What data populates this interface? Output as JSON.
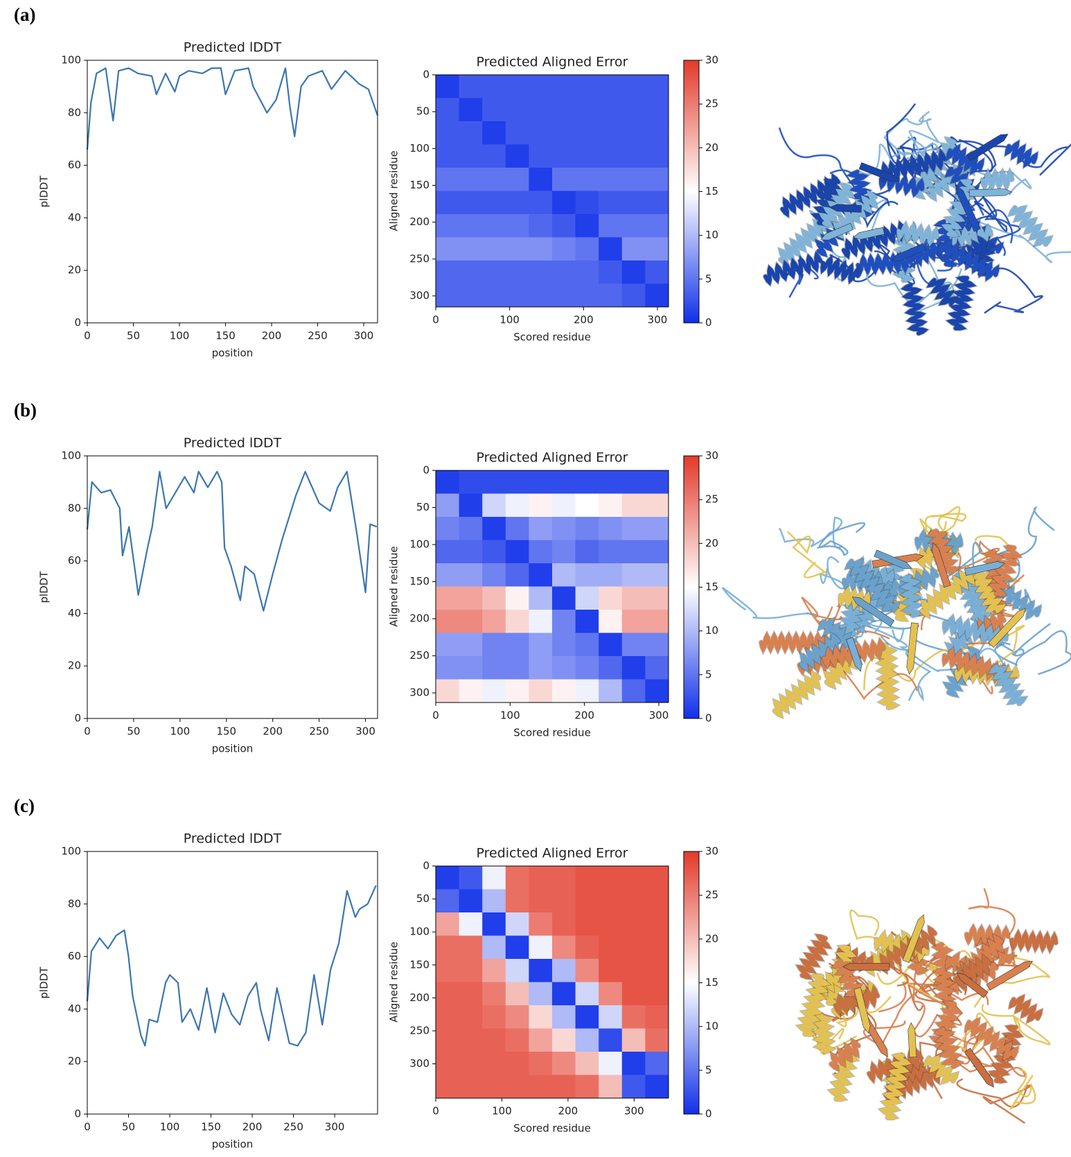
{
  "panel_labels": [
    "(a)",
    "(b)",
    "(c)"
  ],
  "chart_data": [
    {
      "type": "line",
      "title": "Predicted lDDT",
      "xlabel": "position",
      "ylabel": "plDDT",
      "color": "#3a76af",
      "x": [
        0,
        4,
        10,
        20,
        28,
        34,
        45,
        55,
        70,
        75,
        85,
        95,
        100,
        110,
        125,
        135,
        145,
        150,
        160,
        175,
        180,
        195,
        205,
        215,
        220,
        225,
        232,
        240,
        255,
        265,
        280,
        295,
        305,
        315
      ],
      "values": [
        66,
        84,
        95,
        97,
        77,
        96,
        97,
        95,
        94,
        87,
        95,
        88,
        94,
        96,
        95,
        97,
        97,
        87,
        96,
        97,
        90,
        80,
        85,
        97,
        82,
        71,
        90,
        94,
        96,
        89,
        96,
        91,
        89,
        79
      ],
      "xlim": [
        0,
        315
      ],
      "ylim": [
        0,
        100
      ],
      "xticks": [
        0,
        50,
        100,
        150,
        200,
        250,
        300
      ],
      "yticks": [
        0,
        20,
        40,
        60,
        80,
        100
      ]
    },
    {
      "type": "heatmap",
      "title": "Predicted Aligned Error",
      "xlabel": "Scored residue",
      "ylabel": "Aligned residue",
      "colormap": [
        "#1030e8",
        "#ffffff",
        "#e23a2a"
      ],
      "xlim": [
        0,
        315
      ],
      "ylim": [
        315,
        0
      ],
      "xticks": [
        0,
        100,
        200,
        300
      ],
      "yticks": [
        0,
        50,
        100,
        150,
        200,
        250,
        300
      ],
      "colorbar": {
        "lim": [
          0,
          30
        ],
        "ticks": [
          0,
          5,
          10,
          15,
          20,
          25,
          30
        ]
      },
      "matrix": [
        [
          1,
          3,
          3,
          3,
          3,
          3,
          3,
          3,
          3,
          3
        ],
        [
          3,
          1,
          3,
          3,
          3,
          3,
          3,
          3,
          3,
          3
        ],
        [
          3,
          3,
          1,
          3,
          3,
          3,
          3,
          3,
          3,
          3
        ],
        [
          3,
          3,
          3,
          1,
          3,
          3,
          3,
          3,
          3,
          3
        ],
        [
          5,
          5,
          5,
          5,
          1,
          5,
          5,
          5,
          5,
          5
        ],
        [
          3,
          3,
          3,
          3,
          3,
          1,
          2,
          3,
          3,
          3
        ],
        [
          5,
          5,
          5,
          5,
          4,
          3,
          1,
          5,
          5,
          5
        ],
        [
          7,
          7,
          7,
          7,
          7,
          6,
          5,
          1,
          7,
          7
        ],
        [
          4,
          4,
          4,
          4,
          4,
          4,
          4,
          3,
          1,
          3
        ],
        [
          4,
          4,
          4,
          4,
          4,
          4,
          4,
          4,
          3,
          1
        ]
      ]
    },
    {
      "type": "line",
      "title": "Predicted lDDT",
      "xlabel": "position",
      "ylabel": "plDDT",
      "color": "#3a76af",
      "x": [
        0,
        5,
        15,
        25,
        35,
        38,
        45,
        52,
        55,
        65,
        70,
        78,
        85,
        95,
        105,
        115,
        120,
        130,
        140,
        145,
        148,
        155,
        165,
        170,
        180,
        190,
        200,
        210,
        225,
        235,
        250,
        262,
        270,
        280,
        290,
        295,
        300,
        305,
        312
      ],
      "values": [
        72,
        90,
        86,
        87,
        80,
        62,
        73,
        55,
        47,
        65,
        73,
        94,
        80,
        86,
        92,
        86,
        94,
        88,
        94,
        90,
        65,
        58,
        45,
        58,
        55,
        41,
        55,
        68,
        85,
        94,
        82,
        79,
        88,
        94,
        72,
        60,
        48,
        74,
        73
      ],
      "xlim": [
        0,
        313
      ],
      "ylim": [
        0,
        100
      ],
      "xticks": [
        0,
        50,
        100,
        150,
        200,
        250,
        300
      ],
      "yticks": [
        0,
        20,
        40,
        60,
        80,
        100
      ]
    },
    {
      "type": "heatmap",
      "title": "Predicted Aligned Error",
      "xlabel": "Scored residue",
      "ylabel": "Aligned residue",
      "colormap": [
        "#1030e8",
        "#ffffff",
        "#e23a2a"
      ],
      "xlim": [
        0,
        313
      ],
      "ylim": [
        313,
        0
      ],
      "xticks": [
        0,
        100,
        200,
        300
      ],
      "yticks": [
        0,
        50,
        100,
        150,
        200,
        250,
        300
      ],
      "colorbar": {
        "lim": [
          0,
          30
        ],
        "ticks": [
          0,
          5,
          10,
          15,
          20,
          25,
          30
        ]
      },
      "matrix": [
        [
          1,
          2,
          2,
          2,
          2,
          2,
          2,
          2,
          2,
          2
        ],
        [
          8,
          1,
          12,
          14,
          16,
          14,
          15,
          16,
          18,
          18
        ],
        [
          6,
          5,
          1,
          5,
          8,
          7,
          6,
          7,
          8,
          8
        ],
        [
          4,
          4,
          3,
          1,
          5,
          6,
          4,
          5,
          5,
          5
        ],
        [
          8,
          8,
          6,
          4,
          1,
          10,
          9,
          9,
          10,
          10
        ],
        [
          22,
          22,
          20,
          16,
          10,
          1,
          12,
          18,
          20,
          20
        ],
        [
          24,
          24,
          22,
          18,
          14,
          6,
          1,
          16,
          22,
          22
        ],
        [
          8,
          8,
          6,
          6,
          8,
          6,
          5,
          1,
          6,
          6
        ],
        [
          7,
          7,
          6,
          6,
          8,
          7,
          6,
          4,
          1,
          4
        ],
        [
          18,
          16,
          14,
          16,
          18,
          16,
          14,
          10,
          4,
          1
        ]
      ]
    },
    {
      "type": "line",
      "title": "Predicted lDDT",
      "xlabel": "position",
      "ylabel": "plDDT",
      "color": "#3a76af",
      "x": [
        0,
        5,
        15,
        25,
        35,
        45,
        50,
        55,
        65,
        70,
        75,
        85,
        95,
        100,
        110,
        115,
        125,
        135,
        145,
        155,
        165,
        175,
        185,
        195,
        205,
        210,
        220,
        230,
        245,
        255,
        265,
        275,
        285,
        295,
        305,
        315,
        325,
        330,
        340,
        350
      ],
      "values": [
        43,
        62,
        67,
        63,
        68,
        70,
        60,
        45,
        30,
        26,
        36,
        35,
        50,
        53,
        50,
        35,
        40,
        32,
        48,
        31,
        46,
        38,
        34,
        45,
        50,
        40,
        28,
        48,
        27,
        26,
        31,
        53,
        34,
        55,
        65,
        85,
        75,
        78,
        80,
        87
      ],
      "xlim": [
        0,
        352
      ],
      "ylim": [
        0,
        100
      ],
      "xticks": [
        0,
        50,
        100,
        150,
        200,
        250,
        300
      ],
      "yticks": [
        0,
        20,
        40,
        60,
        80,
        100
      ]
    },
    {
      "type": "heatmap",
      "title": "Predicted Aligned Error",
      "xlabel": "Scored residue",
      "ylabel": "Aligned residue",
      "colormap": [
        "#1030e8",
        "#ffffff",
        "#e23a2a"
      ],
      "xlim": [
        0,
        352
      ],
      "ylim": [
        352,
        0
      ],
      "xticks": [
        0,
        100,
        200,
        300
      ],
      "yticks": [
        0,
        50,
        100,
        150,
        200,
        250,
        300
      ],
      "colorbar": {
        "lim": [
          0,
          30
        ],
        "ticks": [
          0,
          5,
          10,
          15,
          20,
          25,
          30
        ]
      },
      "matrix": [
        [
          1,
          3,
          14,
          26,
          27,
          27,
          28,
          28,
          28,
          28
        ],
        [
          4,
          1,
          10,
          26,
          27,
          27,
          28,
          28,
          28,
          28
        ],
        [
          22,
          14,
          1,
          12,
          25,
          27,
          28,
          28,
          28,
          28
        ],
        [
          26,
          26,
          10,
          1,
          14,
          24,
          27,
          28,
          28,
          28
        ],
        [
          26,
          26,
          22,
          12,
          1,
          10,
          24,
          28,
          28,
          28
        ],
        [
          27,
          27,
          25,
          20,
          10,
          1,
          12,
          24,
          28,
          28
        ],
        [
          27,
          27,
          26,
          24,
          18,
          10,
          1,
          12,
          26,
          27
        ],
        [
          27,
          27,
          27,
          26,
          22,
          18,
          10,
          2,
          20,
          26
        ],
        [
          27,
          27,
          27,
          27,
          26,
          24,
          20,
          14,
          1,
          4
        ],
        [
          27,
          27,
          27,
          27,
          27,
          27,
          26,
          20,
          3,
          1
        ]
      ]
    }
  ]
}
